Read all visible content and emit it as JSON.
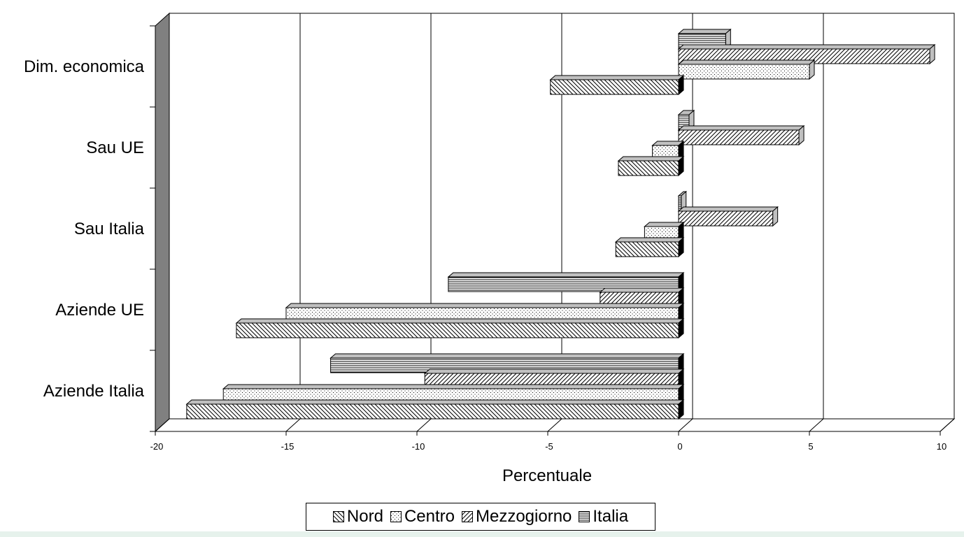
{
  "chart_data": {
    "type": "bar",
    "orientation": "horizontal",
    "categories": [
      "Dim. economica",
      "Sau UE",
      "Sau Italia",
      "Aziende UE",
      "Aziende Italia"
    ],
    "series": [
      {
        "name": "Nord",
        "values": [
          -4.9,
          -2.3,
          -2.4,
          -16.9,
          -18.8
        ]
      },
      {
        "name": "Centro",
        "values": [
          5.0,
          -1.0,
          -1.3,
          -15.0,
          -17.4
        ]
      },
      {
        "name": "Mezzogiorno",
        "values": [
          9.6,
          4.6,
          3.6,
          -3.0,
          -9.7
        ]
      },
      {
        "name": "Italia",
        "values": [
          1.8,
          0.4,
          0.1,
          -8.8,
          -13.3
        ]
      }
    ],
    "xlabel": "Percentuale",
    "xlim": [
      -20,
      10
    ],
    "xticks": [
      "-20",
      "-15",
      "-10",
      "-5",
      "0",
      "5",
      "10"
    ],
    "grid": true,
    "legend_position": "bottom",
    "style": "3d"
  },
  "legend": {
    "items": [
      {
        "label": "Nord",
        "pattern": "hatch-back"
      },
      {
        "label": "Centro",
        "pattern": "dots"
      },
      {
        "label": "Mezzogiorno",
        "pattern": "hatch-forward"
      },
      {
        "label": "Italia",
        "pattern": "horizontal-lines"
      }
    ]
  },
  "colors": {
    "wall": "#808080",
    "bar_fill": "#ffffff",
    "bar_side": "#000000",
    "bar_top": "#c0c0c0",
    "gridline": "#000000",
    "bottom_strip": "#e6f2ec"
  }
}
